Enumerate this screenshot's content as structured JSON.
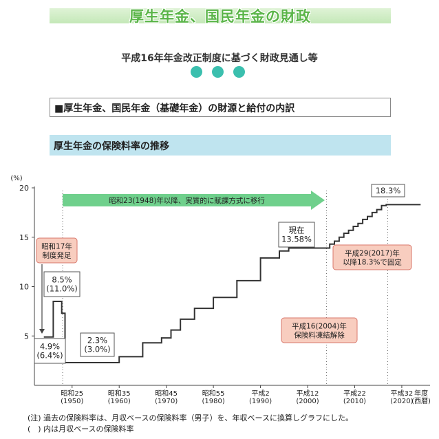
{
  "header": {
    "title": "厚生年金、国民年金の財政",
    "subtitle": "平成16年年金改正制度に基づく財政見通し等",
    "section_heading": "■厚生年金、国民年金（基礎年金）の財源と給付の内訳",
    "chart_heading": "厚生年金の保険料率の推移"
  },
  "chart_data": {
    "type": "line",
    "title": "",
    "ylabel": "(%)",
    "xlabel": "年度\n(西暦)",
    "ylim": [
      0,
      20
    ],
    "yticks": [
      5,
      10,
      15,
      20
    ],
    "xlim": [
      1942,
      2026
    ],
    "x_ticks": [
      {
        "year": 1950,
        "label1": "昭和25",
        "label2": "(1950)"
      },
      {
        "year": 1960,
        "label1": "昭和35",
        "label2": "(1960)"
      },
      {
        "year": 1970,
        "label1": "昭和45",
        "label2": "(1970)"
      },
      {
        "year": 1980,
        "label1": "昭和55",
        "label2": "(1980)"
      },
      {
        "year": 1990,
        "label1": "平成2",
        "label2": "(1990)"
      },
      {
        "year": 2000,
        "label1": "平成12",
        "label2": "(2000)"
      },
      {
        "year": 2010,
        "label1": "平成22",
        "label2": "(2010)"
      },
      {
        "year": 2020,
        "label1": "平成32",
        "label2": "(2020)"
      }
    ],
    "x_axis_unit_label1": "年度",
    "x_axis_unit_label2": "(西暦)",
    "series": [
      {
        "x": [
          1944,
          1946,
          1946,
          1947.8,
          1947.8,
          1948.5,
          1948.5,
          1960,
          1960,
          1965,
          1965,
          1969,
          1969,
          1971,
          1971,
          1973,
          1973,
          1976,
          1976,
          1980,
          1980,
          1985,
          1985,
          1990,
          1990,
          1994,
          1994,
          1996,
          1996,
          2004.7,
          2004.7,
          2005.7,
          2005.7,
          2006.7,
          2006.7,
          2007.7,
          2007.7,
          2008.7,
          2008.7,
          2009.7,
          2009.7,
          2010.7,
          2010.7,
          2011.7,
          2011.7,
          2012.7,
          2012.7,
          2013.7,
          2013.7,
          2014.7,
          2014.7,
          2015.7,
          2015.7,
          2016.7,
          2016.7,
          2017.7,
          2017.7,
          2024
        ],
        "y": [
          4.9,
          4.9,
          8.5,
          8.5,
          7.3,
          7.3,
          2.3,
          2.3,
          2.9,
          2.9,
          4.3,
          4.3,
          4.8,
          4.8,
          5.6,
          5.6,
          6.7,
          6.7,
          7.8,
          7.8,
          8.9,
          8.9,
          10.6,
          10.6,
          12.9,
          12.9,
          13.6,
          13.6,
          13.9,
          13.9,
          14.3,
          14.3,
          14.6,
          14.6,
          15.0,
          15.0,
          15.4,
          15.4,
          15.7,
          15.7,
          16.1,
          16.1,
          16.4,
          16.4,
          16.8,
          16.8,
          17.1,
          17.1,
          17.5,
          17.5,
          17.8,
          17.8,
          18.2,
          18.2,
          18.3,
          18.3,
          18.3,
          18.3
        ]
      }
    ],
    "vlines": [
      1948,
      2004,
      2017
    ],
    "arrow_label": "昭和23(1948)年以降、実質的に賦課方式に移行",
    "annotations": {
      "shouwa17": [
        "昭和17年",
        "制度発足"
      ],
      "start_rate": [
        "4.9%",
        "(6.4%)"
      ],
      "peak_rate": [
        "8.5%",
        "(11.0%)"
      ],
      "low_rate": [
        "2.3%",
        "(3.0%)"
      ],
      "current": [
        "現在",
        "13.58%"
      ],
      "final": [
        "18.3%"
      ],
      "fixed": [
        "平成29(2017)年",
        "以降18.3%で固定"
      ],
      "freeze": [
        "平成16(2004)年",
        "保険料凍結解除"
      ]
    }
  },
  "notes": {
    "line1": "(注) 過去の保険料率は、月収ベースの保険料率（男子）を、年収ベースに換算しグラフにした。",
    "line2": "(　) 内は月収ベースの保険料率"
  },
  "colors": {
    "title_green": "#5ab548",
    "dot_teal": "#3bbfae",
    "band_blue": "#bfe4ef",
    "arrow_green": "#6fd08c",
    "callout_pink": "#f8cdbf",
    "callout_border": "#d9776b",
    "line": "#333333"
  }
}
